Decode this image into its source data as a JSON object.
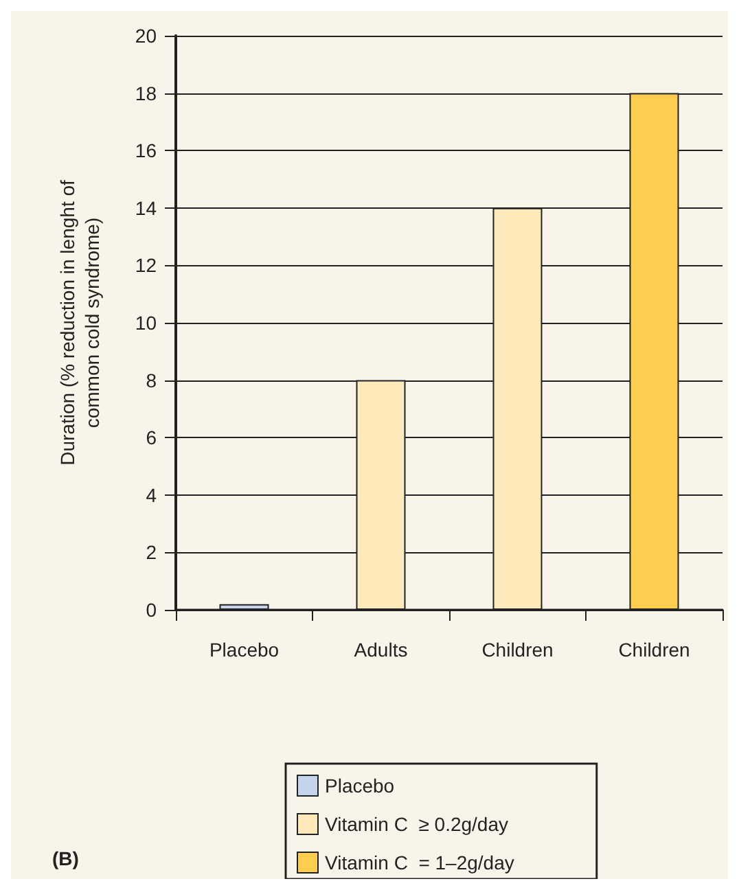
{
  "chart_data": {
    "type": "bar",
    "categories": [
      "Placebo",
      "Adults",
      "Children",
      "Children"
    ],
    "series": [
      {
        "name": "Placebo",
        "color": "#c5d4ec",
        "values": [
          0.2,
          null,
          null,
          null
        ]
      },
      {
        "name": "Vitamin C  ≥ 0.2g/day",
        "color": "#fde9b9",
        "values": [
          null,
          8,
          14,
          null
        ]
      },
      {
        "name": "Vitamin C  = 1–2g/day",
        "color": "#fdcd4f",
        "values": [
          null,
          null,
          null,
          18
        ]
      }
    ],
    "ylabel": "Duration (% reduction in lenght of\ncommon cold syndrome)",
    "ylim": [
      0,
      20
    ],
    "yticks": [
      0,
      2,
      4,
      6,
      8,
      10,
      12,
      14,
      16,
      18,
      20
    ],
    "grid": "y",
    "legend": "bottom",
    "annotations": [
      "(B)"
    ]
  }
}
